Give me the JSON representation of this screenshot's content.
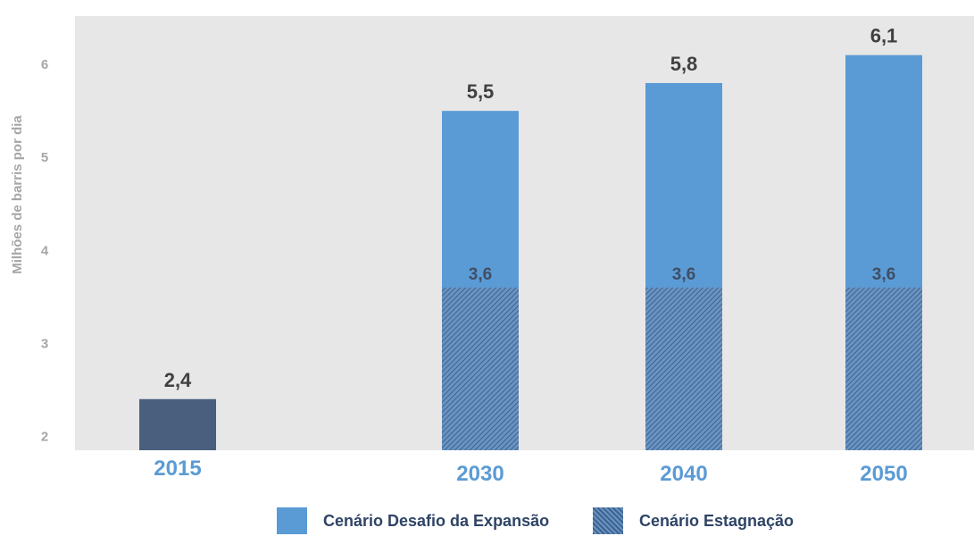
{
  "chart_data": {
    "type": "bar",
    "ylabel": "Milhões de barris por dia",
    "xlabel": "",
    "ylim": [
      1.85,
      6.52
    ],
    "yticks": [
      "2",
      "3",
      "4",
      "5",
      "6"
    ],
    "categories": [
      "2015",
      "2030",
      "2040",
      "2050"
    ],
    "series": [
      {
        "name": "Cenário Estagnação",
        "values": [
          null,
          3.6,
          3.6,
          3.6
        ],
        "labels": [
          "",
          "3,6",
          "3,6",
          "3,6"
        ],
        "color": "#4f7aa8",
        "pattern": "diagonal-hatch"
      },
      {
        "name": "Cenário Desafio da Expansão",
        "values": [
          null,
          5.5,
          5.8,
          6.1
        ],
        "labels": [
          "",
          "5,5",
          "5,8",
          "6,1"
        ],
        "color": "#5b9bd5"
      },
      {
        "name": "",
        "values": [
          2.4,
          null,
          null,
          null
        ],
        "labels": [
          "2,4",
          "",
          "",
          ""
        ],
        "color": "#4a5f7e"
      }
    ],
    "plot_background": "#e7e7e7",
    "grid": false,
    "legend_position": "bottom-center"
  },
  "legend": {
    "items": [
      {
        "label": "Cenário Desafio da Expansão",
        "color": "#5b9bd5",
        "pattern": "solid"
      },
      {
        "label": "Cenário Estagnação",
        "color": "#4f7aa8",
        "pattern": "diagonal-hatch"
      }
    ]
  },
  "colors": {
    "axis_text": "#a6a6a6",
    "category_text": "#5b9bd5",
    "value_label_text": "#404040",
    "inner_label_text": "#3e4f66"
  }
}
